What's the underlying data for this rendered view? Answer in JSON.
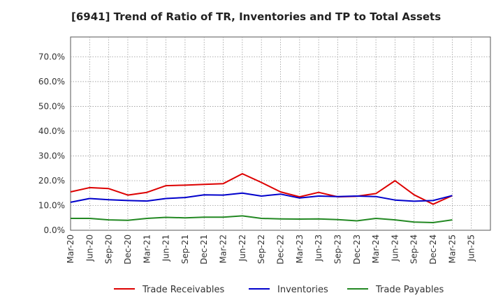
{
  "chart_data": {
    "type": "line",
    "title": "[6941]  Trend of Ratio of TR, Inventories and TP to Total Assets",
    "xlabel": "",
    "ylabel": "",
    "categories": [
      "Mar-20",
      "Jun-20",
      "Sep-20",
      "Dec-20",
      "Mar-21",
      "Jun-21",
      "Sep-21",
      "Dec-21",
      "Mar-22",
      "Jun-22",
      "Sep-22",
      "Dec-22",
      "Mar-23",
      "Jun-23",
      "Sep-23",
      "Dec-23",
      "Mar-24",
      "Jun-24",
      "Sep-24",
      "Dec-24",
      "Mar-25",
      "Jun-25"
    ],
    "ylim": [
      0,
      0.78
    ],
    "yticks": [
      0,
      0.1,
      0.2,
      0.3,
      0.4,
      0.5,
      0.6,
      0.7
    ],
    "ytick_labels": [
      "0.0%",
      "10.0%",
      "20.0%",
      "30.0%",
      "40.0%",
      "50.0%",
      "60.0%",
      "70.0%"
    ],
    "grid": true,
    "legend_position": "bottom",
    "series": [
      {
        "name": "Trade Receivables",
        "color": "#dd0000",
        "values": [
          0.155,
          0.172,
          0.168,
          0.142,
          0.153,
          0.18,
          0.182,
          0.185,
          0.188,
          0.228,
          0.193,
          0.155,
          0.135,
          0.153,
          0.135,
          0.137,
          0.148,
          0.2,
          0.143,
          0.105,
          0.14,
          null
        ]
      },
      {
        "name": "Inventories",
        "color": "#0000cc",
        "values": [
          0.113,
          0.128,
          0.123,
          0.12,
          0.118,
          0.128,
          0.132,
          0.143,
          0.142,
          0.15,
          0.138,
          0.146,
          0.13,
          0.138,
          0.136,
          0.138,
          0.136,
          0.122,
          0.117,
          0.12,
          0.14,
          null
        ]
      },
      {
        "name": "Trade Payables",
        "color": "#228822",
        "values": [
          0.048,
          0.048,
          0.042,
          0.04,
          0.048,
          0.052,
          0.05,
          0.053,
          0.053,
          0.058,
          0.048,
          0.046,
          0.045,
          0.046,
          0.043,
          0.038,
          0.048,
          0.042,
          0.033,
          0.031,
          0.042,
          null
        ]
      }
    ]
  }
}
